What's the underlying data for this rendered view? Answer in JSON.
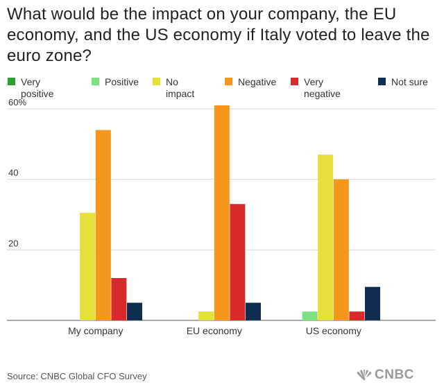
{
  "title": "What would be the impact on your company, the EU economy, and the US economy if Italy voted to leave the euro zone?",
  "legend": [
    {
      "label": "Very positive",
      "color": "#2ca02c"
    },
    {
      "label": "Positive",
      "color": "#7ee07e"
    },
    {
      "label": "No impact",
      "color": "#e6e03a"
    },
    {
      "label": "Negative",
      "color": "#f5961e"
    },
    {
      "label": "Very negative",
      "color": "#d62b2b"
    },
    {
      "label": "Not sure",
      "color": "#0e2d50"
    }
  ],
  "chart_data": {
    "type": "bar",
    "categories": [
      "My company",
      "EU economy",
      "US economy"
    ],
    "series": [
      {
        "name": "Very positive",
        "values": [
          0,
          0,
          0
        ]
      },
      {
        "name": "Positive",
        "values": [
          0,
          0,
          2.5
        ]
      },
      {
        "name": "No impact",
        "values": [
          30.5,
          2.5,
          47
        ]
      },
      {
        "name": "Negative",
        "values": [
          54,
          61,
          40
        ]
      },
      {
        "name": "Very negative",
        "values": [
          12,
          33,
          2.5
        ]
      },
      {
        "name": "Not sure",
        "values": [
          5,
          5,
          9.5
        ]
      }
    ],
    "y_ticks": [
      "60%",
      "40",
      "20"
    ],
    "ylim": [
      0,
      60
    ],
    "title": "What would be the impact on your company, the EU economy, and the US economy if Italy voted to leave the euro zone?",
    "xlabel": "",
    "ylabel": "",
    "grid": true
  },
  "source": "Source: CNBC Global CFO Survey",
  "logo_text": "CNBC"
}
